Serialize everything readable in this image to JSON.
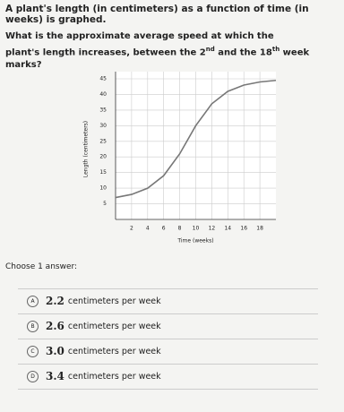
{
  "question": {
    "intro": "A plant's length (in centimeters) as a function of time (in weeks) is graphed.",
    "prompt": [
      "What is the approximate average speed at which the plant's length increases, between the ",
      "2",
      "nd",
      " and the ",
      "18",
      "th",
      " week marks?"
    ]
  },
  "chart": {
    "type": "line",
    "x_label": "Time (weeks)",
    "y_label": "Length (centimeters)",
    "x": [
      0,
      2,
      4,
      6,
      8,
      10,
      12,
      14,
      16,
      18,
      20
    ],
    "values": [
      7,
      8,
      10,
      14,
      21,
      30,
      37,
      41,
      43,
      44,
      44.5
    ],
    "color": "#777777",
    "xlim": [
      0,
      20
    ],
    "ylim": [
      0,
      45
    ],
    "xticks": [
      2,
      4,
      6,
      8,
      10,
      12,
      14,
      16,
      18
    ],
    "yticks": [
      5,
      10,
      15,
      20,
      25,
      30,
      35,
      40,
      45
    ],
    "grid": true
  },
  "choose": "Choose 1 answer:",
  "choices": [
    {
      "letter": "A",
      "value": "2.2",
      "unit": "centimeters per week"
    },
    {
      "letter": "B",
      "value": "2.6",
      "unit": "centimeters per week"
    },
    {
      "letter": "C",
      "value": "3.0",
      "unit": "centimeters per week"
    },
    {
      "letter": "D",
      "value": "3.4",
      "unit": "centimeters per week"
    }
  ]
}
